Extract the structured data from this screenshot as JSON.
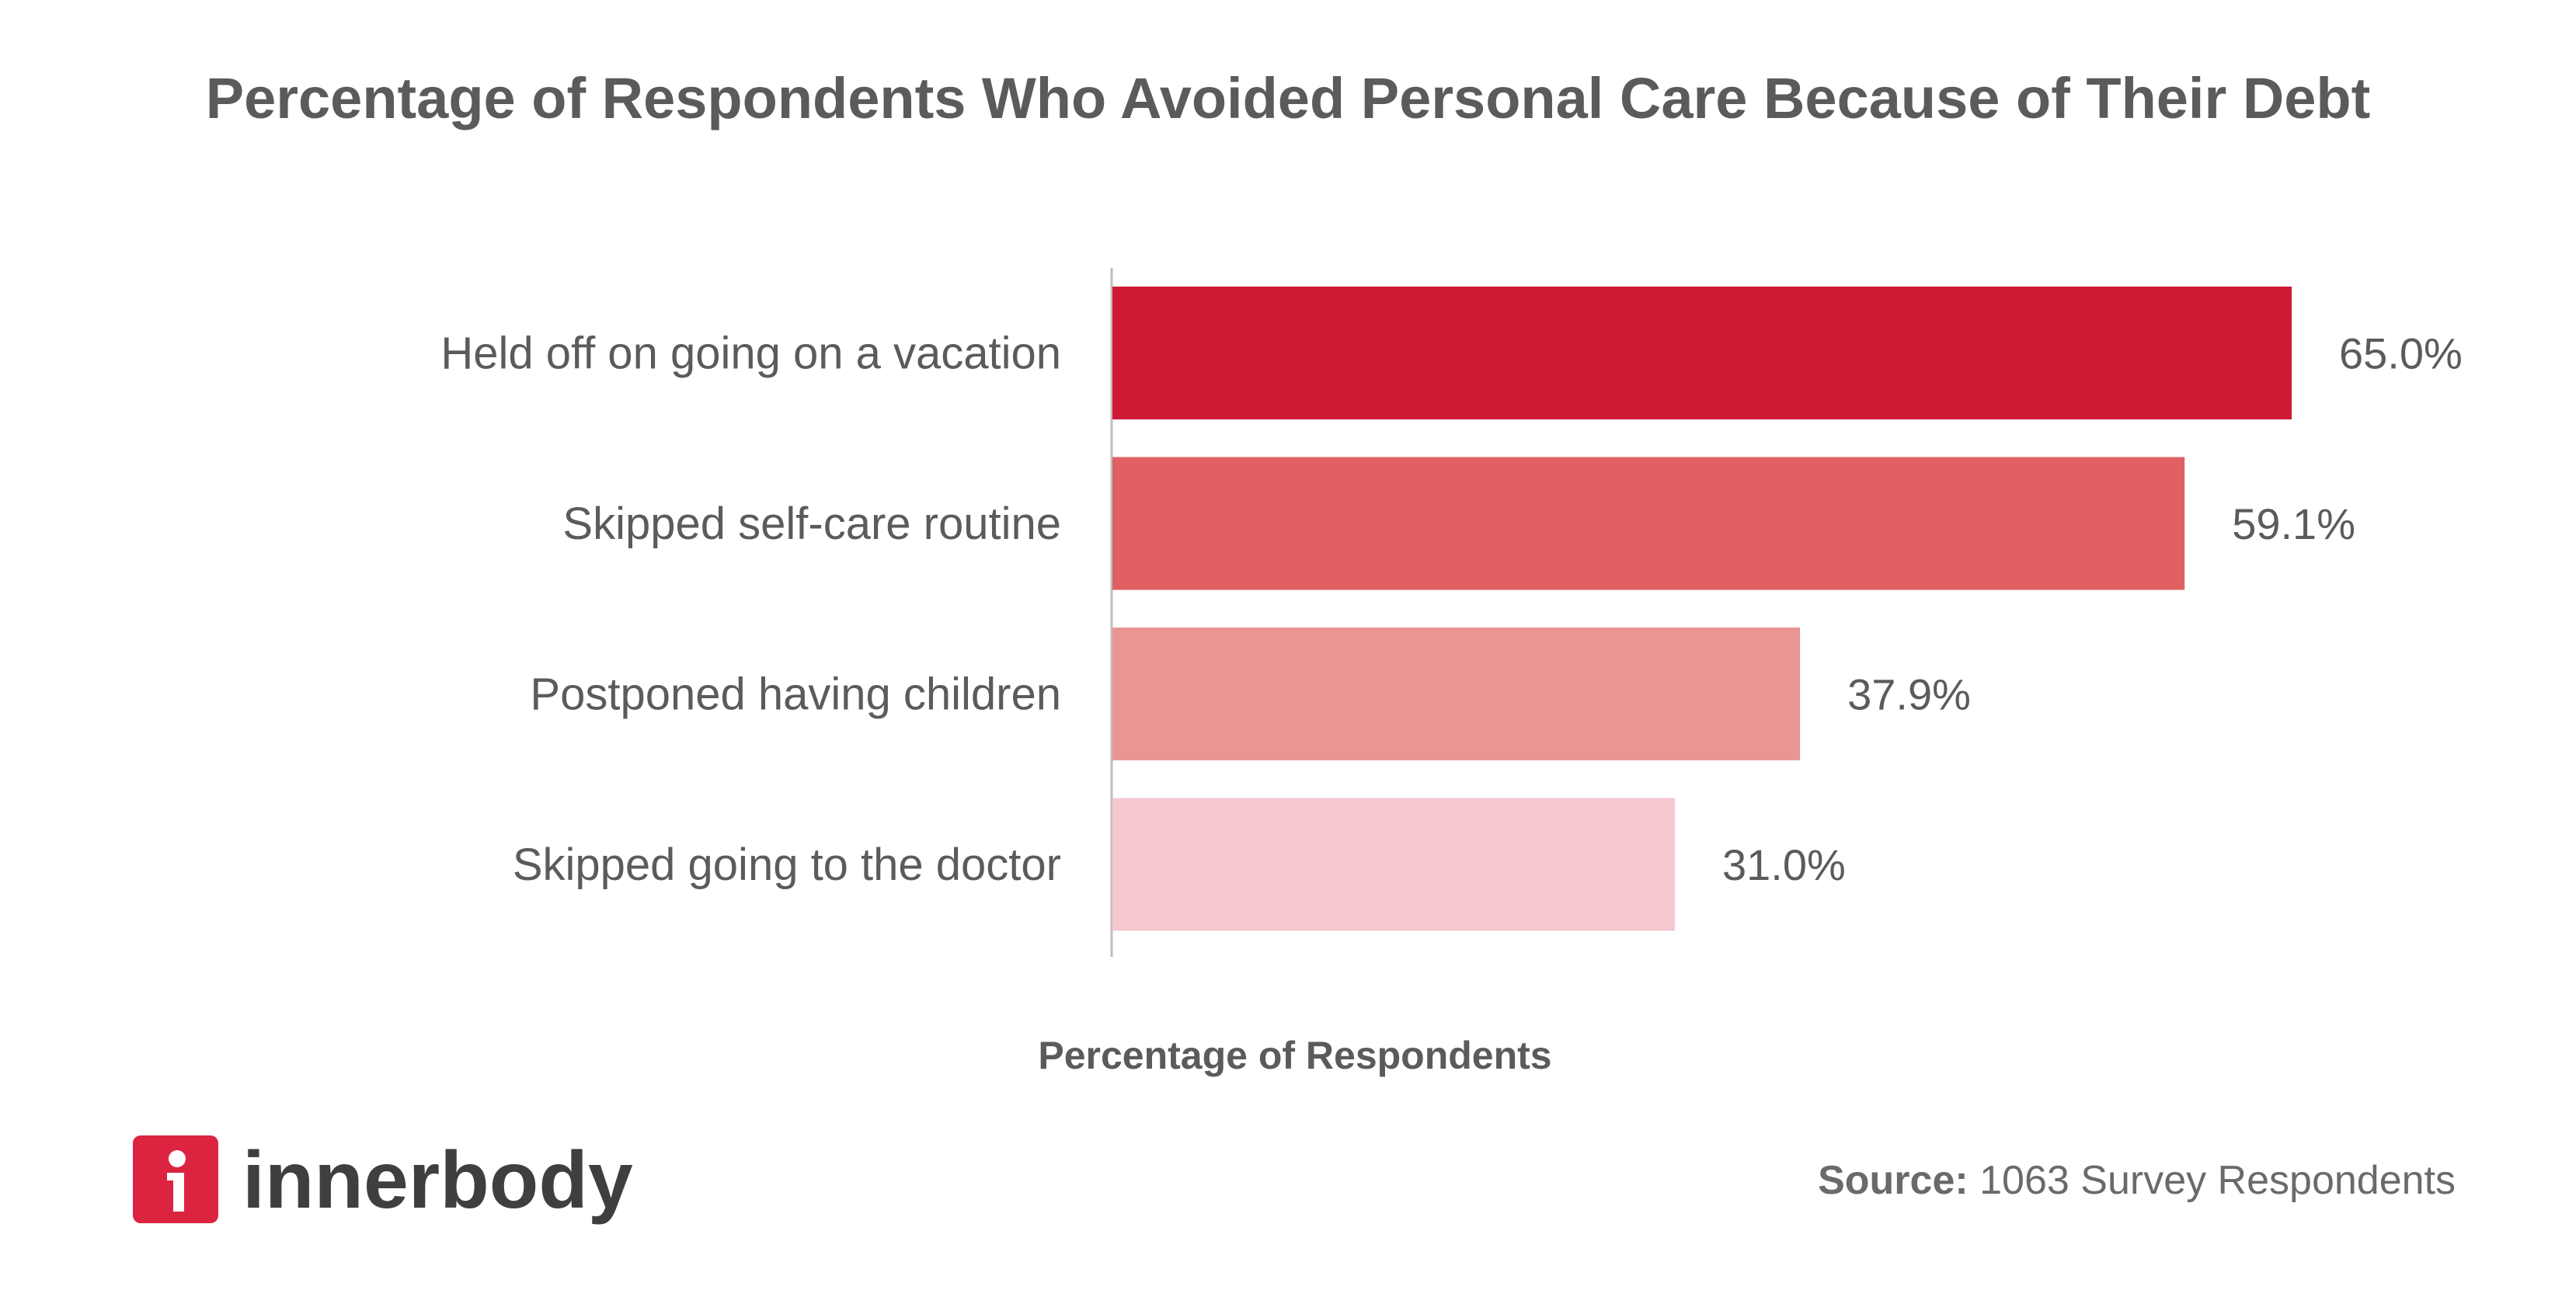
{
  "chart_data": {
    "type": "bar",
    "orientation": "horizontal",
    "title": "Percentage of Respondents Who Avoided Personal Care Because of Their Debt",
    "xlabel": "Percentage of Respondents",
    "ylabel": "",
    "categories": [
      "Held off on going on a vacation",
      "Skipped self-care routine",
      "Postponed having children",
      "Skipped going to the doctor"
    ],
    "values": [
      65.0,
      59.1,
      37.9,
      31.0
    ],
    "value_labels": [
      "65.0%",
      "59.1%",
      "37.9%",
      "31.0%"
    ],
    "colors": [
      "#cf1a36",
      "#e06063",
      "#e89594",
      "#f6c8d0"
    ],
    "xlim": [
      0,
      100
    ],
    "grid": false,
    "legend": "none"
  },
  "footer": {
    "brand": "innerbody",
    "brand_color": "#dc2441",
    "source_label": "Source:",
    "source_text": "1063 Survey Respondents"
  }
}
